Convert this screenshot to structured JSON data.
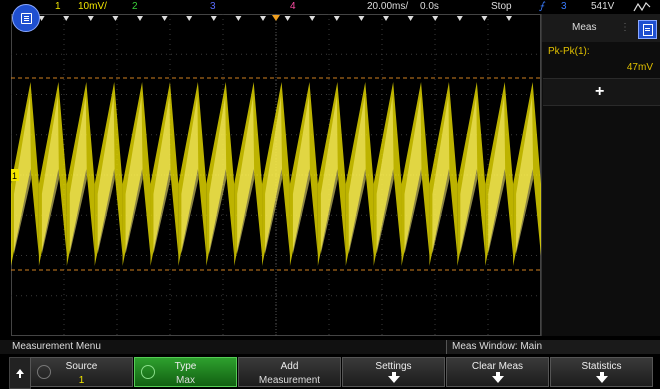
{
  "status": {
    "ch1_num": "1",
    "ch1_scale": "10mV/",
    "ch2_num": "2",
    "ch3_num": "3",
    "ch4_num": "4",
    "timebase": "20.00ms/",
    "delay": "0.0s",
    "run_state": "Stop",
    "trig_source": "3",
    "trig_level": "541V",
    "trig_edge_symbol": "⨍",
    "colors": {
      "ch1": "#f2e600",
      "ch2": "#3ad23a",
      "ch3": "#5a6cff",
      "ch4": "#ff4da6",
      "trigger": "#3a7cff"
    }
  },
  "side_panel": {
    "title": "Meas",
    "measurement_name": "Pk-Pk(1):",
    "measurement_value": "47mV",
    "add_symbol": "+"
  },
  "menu_bar": {
    "title": "Measurement Menu",
    "meas_window": "Meas Window: Main"
  },
  "softkeys": [
    {
      "label": "Source",
      "value": "1"
    },
    {
      "label": "Type",
      "value": "Max"
    },
    {
      "label": "Add",
      "value": "Measurement"
    },
    {
      "label": "Settings"
    },
    {
      "label": "Clear Meas"
    },
    {
      "label": "Statistics"
    }
  ],
  "icons": {
    "menu": "main-menu-icon",
    "meas": "measurement-panel-icon",
    "back": "up-arrow-icon"
  },
  "chart_data": {
    "type": "line",
    "series": [
      {
        "channel": "1",
        "shape": "sawtooth",
        "cycles": 19
      }
    ],
    "cursor_lines": "dashed orange upper/lower",
    "grid": true
  }
}
